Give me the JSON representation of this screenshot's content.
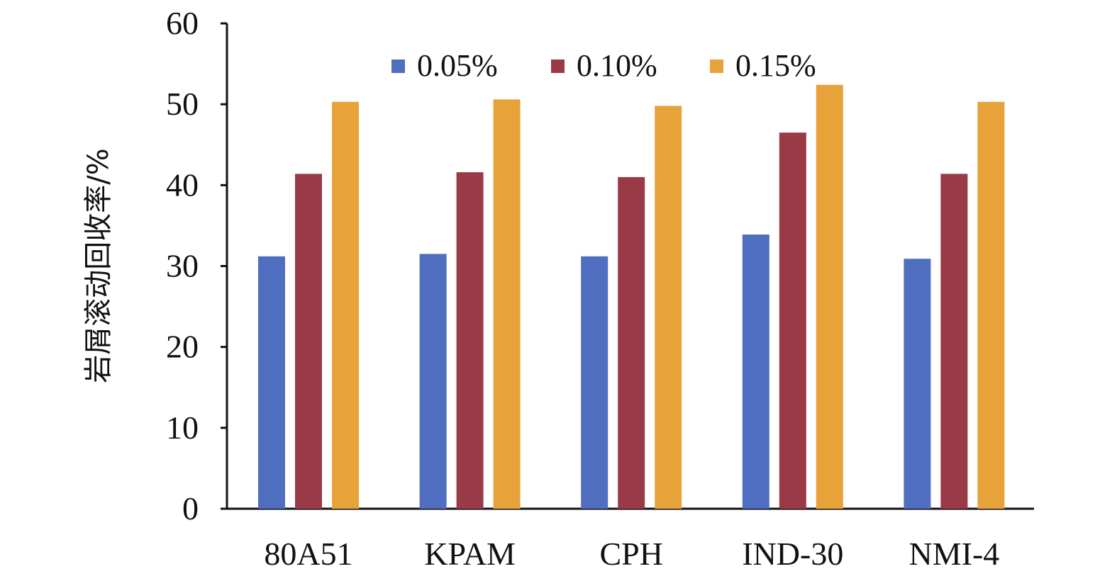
{
  "chart_data": {
    "type": "bar",
    "title": "",
    "xlabel": "",
    "ylabel": "岩屑滚动回收率/%",
    "ylim": [
      0,
      60
    ],
    "yticks": [
      0,
      10,
      20,
      30,
      40,
      50,
      60
    ],
    "grid": false,
    "legend_position": "top-center",
    "categories": [
      "80A51",
      "KPAM",
      "CPH",
      "IND-30",
      "NMI-4"
    ],
    "series": [
      {
        "name": "0.05%",
        "color": "#4f6ebf",
        "values": [
          31.2,
          31.5,
          31.2,
          33.9,
          30.9
        ]
      },
      {
        "name": "0.10%",
        "color": "#9b3a47",
        "values": [
          41.4,
          41.6,
          41.0,
          46.5,
          41.4
        ]
      },
      {
        "name": "0.15%",
        "color": "#e8a23a",
        "values": [
          50.3,
          50.6,
          49.8,
          52.4,
          50.3
        ]
      }
    ]
  }
}
